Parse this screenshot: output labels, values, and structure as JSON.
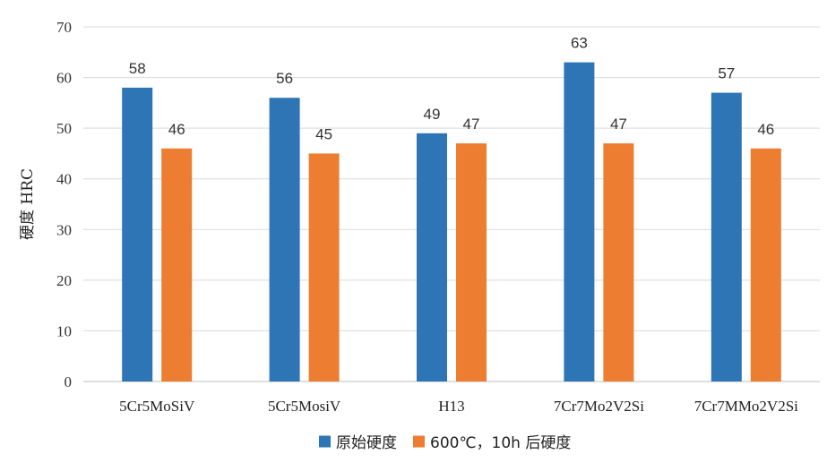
{
  "chart_data": {
    "type": "bar",
    "categories": [
      "5Cr5MoSiV",
      "5Cr5MosiV",
      "H13",
      "7Cr7Mo2V2Si",
      "7Cr7MMo2V2Si"
    ],
    "series": [
      {
        "name": "原始硬度",
        "color": "#2E75B6",
        "values": [
          58,
          56,
          49,
          63,
          57
        ]
      },
      {
        "name": "600℃，10h 后硬度",
        "color": "#ED7D31",
        "values": [
          46,
          45,
          47,
          47,
          46
        ]
      }
    ],
    "ylabel": "硬度 HRC",
    "xlabel": "",
    "ylim": [
      0,
      70
    ],
    "yticks": [
      0,
      10,
      20,
      30,
      40,
      50,
      60,
      70
    ],
    "grid": true,
    "legend_position": "bottom"
  }
}
